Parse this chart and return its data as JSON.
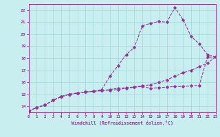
{
  "xlabel": "Windchill (Refroidissement éolien,°C)",
  "bg_color": "#c8eef0",
  "grid_color": "#a0d8d8",
  "line_color": "#993399",
  "xmin": 0,
  "xmax": 23,
  "ymin": 13.5,
  "ymax": 22.5,
  "yticks": [
    14,
    15,
    16,
    17,
    18,
    19,
    20,
    21,
    22
  ],
  "xticks": [
    0,
    1,
    2,
    3,
    4,
    5,
    6,
    7,
    8,
    9,
    10,
    11,
    12,
    13,
    14,
    15,
    16,
    17,
    18,
    19,
    20,
    21,
    22,
    23
  ],
  "line1_x": [
    0,
    1,
    2,
    3,
    4,
    5,
    6,
    7,
    8,
    9,
    10,
    11,
    12,
    13,
    14,
    15,
    16,
    17,
    18,
    19,
    20,
    21,
    22,
    23
  ],
  "line1_y": [
    13.6,
    13.9,
    14.1,
    14.5,
    14.8,
    15.0,
    15.1,
    15.2,
    15.25,
    15.3,
    15.35,
    15.4,
    15.5,
    15.6,
    15.7,
    15.8,
    16.0,
    16.2,
    16.5,
    16.8,
    17.0,
    17.3,
    17.6,
    18.1
  ],
  "line2_x": [
    0,
    1,
    2,
    3,
    4,
    5,
    6,
    7,
    8,
    9,
    10,
    11,
    12,
    13,
    14,
    15,
    16,
    17,
    18,
    19,
    20,
    21,
    22,
    23
  ],
  "line2_y": [
    13.6,
    13.9,
    14.1,
    14.5,
    14.8,
    15.0,
    15.1,
    15.2,
    15.25,
    15.4,
    16.5,
    17.4,
    18.3,
    18.9,
    20.7,
    20.9,
    21.05,
    21.0,
    22.2,
    21.2,
    19.8,
    19.2,
    18.3,
    18.1
  ],
  "line3_x": [
    0,
    1,
    2,
    3,
    4,
    5,
    6,
    7,
    8,
    9,
    10,
    11,
    12,
    13,
    14,
    15,
    16,
    17,
    18,
    19,
    20,
    21,
    22,
    23
  ],
  "line3_y": [
    13.6,
    13.9,
    14.1,
    14.5,
    14.8,
    15.0,
    15.1,
    15.2,
    15.25,
    15.3,
    15.4,
    15.5,
    15.55,
    15.6,
    15.65,
    15.5,
    15.55,
    15.6,
    15.65,
    15.65,
    15.7,
    15.75,
    18.1,
    18.1
  ]
}
